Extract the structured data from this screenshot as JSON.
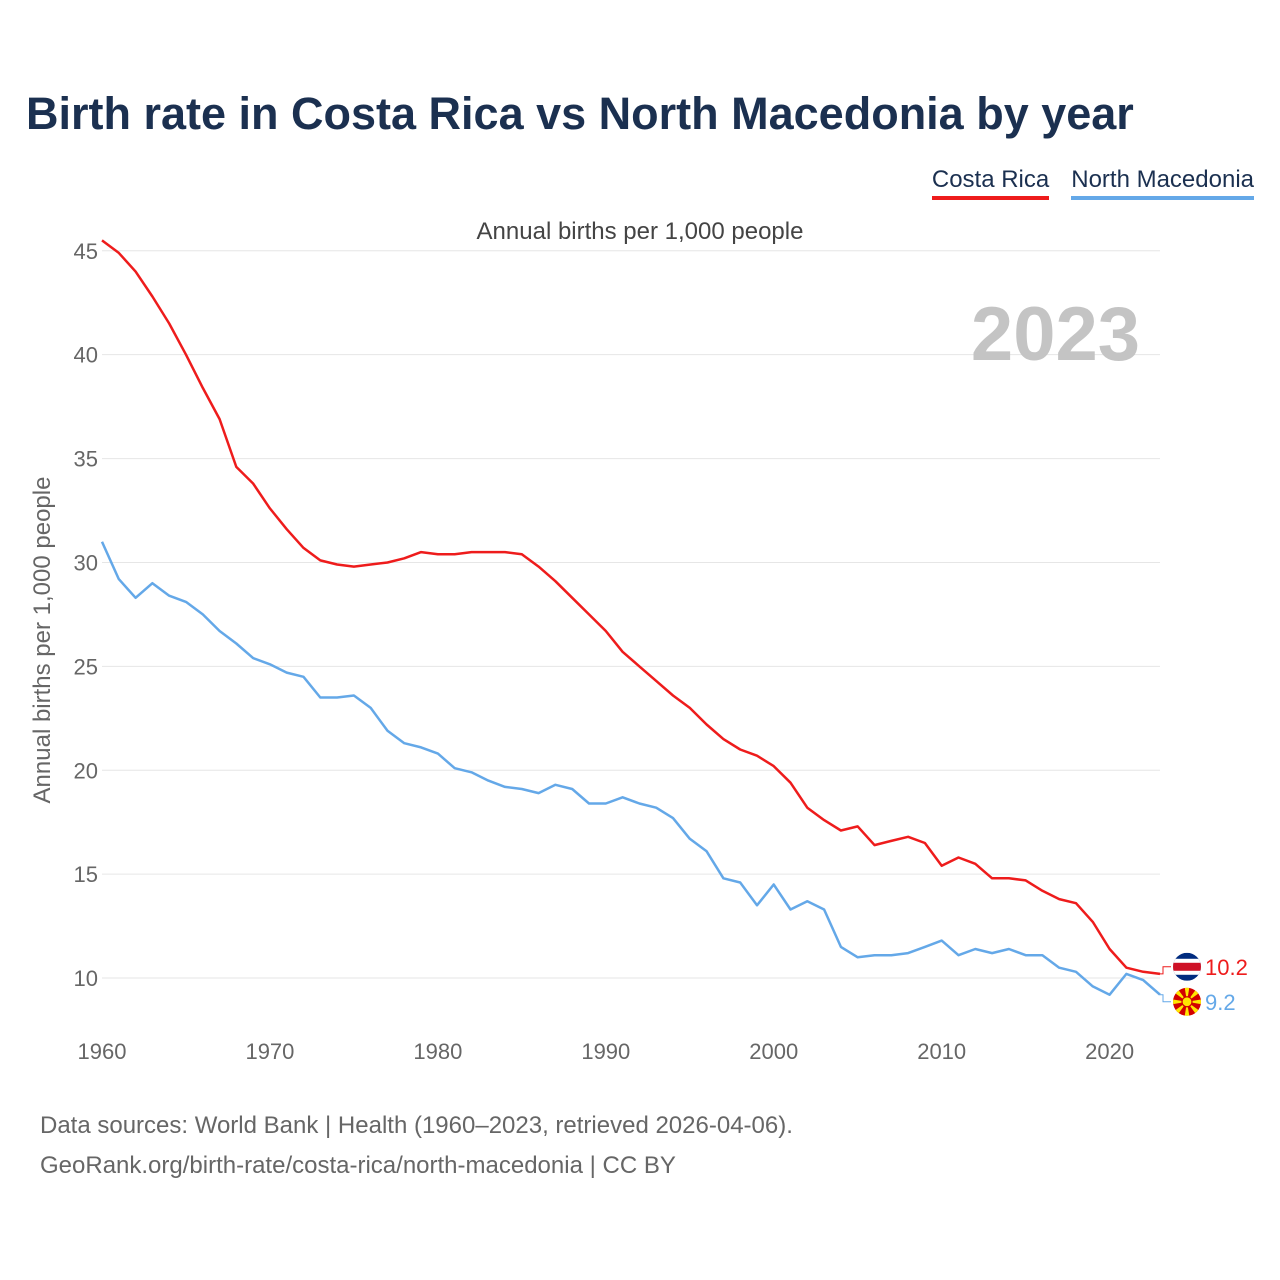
{
  "title": "Birth rate in Costa Rica vs North Macedonia by year",
  "subtitle": "Annual births per 1,000 people",
  "year_watermark": "2023",
  "footer": {
    "line1": "Data sources: World Bank | Health (1960–2023, retrieved 2026-04-06).",
    "line2": "GeoRank.org/birth-rate/costa-rica/north-macedonia | CC BY"
  },
  "colors": {
    "costa_rica": "#ee1c1c",
    "north_macedonia": "#64a8e8",
    "grid": "#e6e6e6",
    "watermark": "#c4c4c4"
  },
  "chart_data": {
    "type": "line",
    "title": "Birth rate in Costa Rica vs North Macedonia by year",
    "xlabel": "",
    "ylabel": "Annual births per 1,000 people",
    "xlim": [
      1960,
      2023
    ],
    "ylim": [
      7.5,
      46
    ],
    "x_ticks": [
      1960,
      1970,
      1980,
      1990,
      2000,
      2010,
      2020
    ],
    "y_ticks": [
      10,
      15,
      20,
      25,
      30,
      35,
      40,
      45
    ],
    "legend_position": "top-right",
    "x": [
      1960,
      1961,
      1962,
      1963,
      1964,
      1965,
      1966,
      1967,
      1968,
      1969,
      1970,
      1971,
      1972,
      1973,
      1974,
      1975,
      1976,
      1977,
      1978,
      1979,
      1980,
      1981,
      1982,
      1983,
      1984,
      1985,
      1986,
      1987,
      1988,
      1989,
      1990,
      1991,
      1992,
      1993,
      1994,
      1995,
      1996,
      1997,
      1998,
      1999,
      2000,
      2001,
      2002,
      2003,
      2004,
      2005,
      2006,
      2007,
      2008,
      2009,
      2010,
      2011,
      2012,
      2013,
      2014,
      2015,
      2016,
      2017,
      2018,
      2019,
      2020,
      2021,
      2022,
      2023
    ],
    "series": [
      {
        "name": "Costa Rica",
        "end_label": "10.2",
        "values": [
          45.5,
          44.9,
          44.0,
          42.8,
          41.5,
          40.0,
          38.4,
          36.9,
          34.6,
          33.8,
          32.6,
          31.6,
          30.7,
          30.1,
          29.9,
          29.8,
          29.9,
          30.0,
          30.2,
          30.5,
          30.4,
          30.4,
          30.5,
          30.5,
          30.5,
          30.4,
          29.8,
          29.1,
          28.3,
          27.5,
          26.7,
          25.7,
          25.0,
          24.3,
          23.6,
          23.0,
          22.2,
          21.5,
          21.0,
          20.7,
          20.2,
          19.4,
          18.2,
          17.6,
          17.1,
          17.3,
          16.4,
          16.6,
          16.8,
          16.5,
          15.4,
          15.8,
          15.5,
          14.8,
          14.8,
          14.7,
          14.2,
          13.8,
          13.6,
          12.7,
          11.4,
          10.5,
          10.3,
          10.2
        ]
      },
      {
        "name": "North Macedonia",
        "end_label": "9.2",
        "values": [
          31.0,
          29.2,
          28.3,
          29.0,
          28.4,
          28.1,
          27.5,
          26.7,
          26.1,
          25.4,
          25.1,
          24.7,
          24.5,
          23.5,
          23.5,
          23.6,
          23.0,
          21.9,
          21.3,
          21.1,
          20.8,
          20.1,
          19.9,
          19.5,
          19.2,
          19.1,
          18.9,
          19.3,
          19.1,
          18.4,
          18.4,
          18.7,
          18.4,
          18.2,
          17.7,
          16.7,
          16.1,
          14.8,
          14.6,
          13.5,
          14.5,
          13.3,
          13.7,
          13.3,
          11.5,
          11.0,
          11.1,
          11.1,
          11.2,
          11.5,
          11.8,
          11.1,
          11.4,
          11.2,
          11.4,
          11.1,
          11.1,
          10.5,
          10.3,
          9.6,
          9.2,
          10.2,
          9.9,
          9.2
        ]
      }
    ]
  }
}
